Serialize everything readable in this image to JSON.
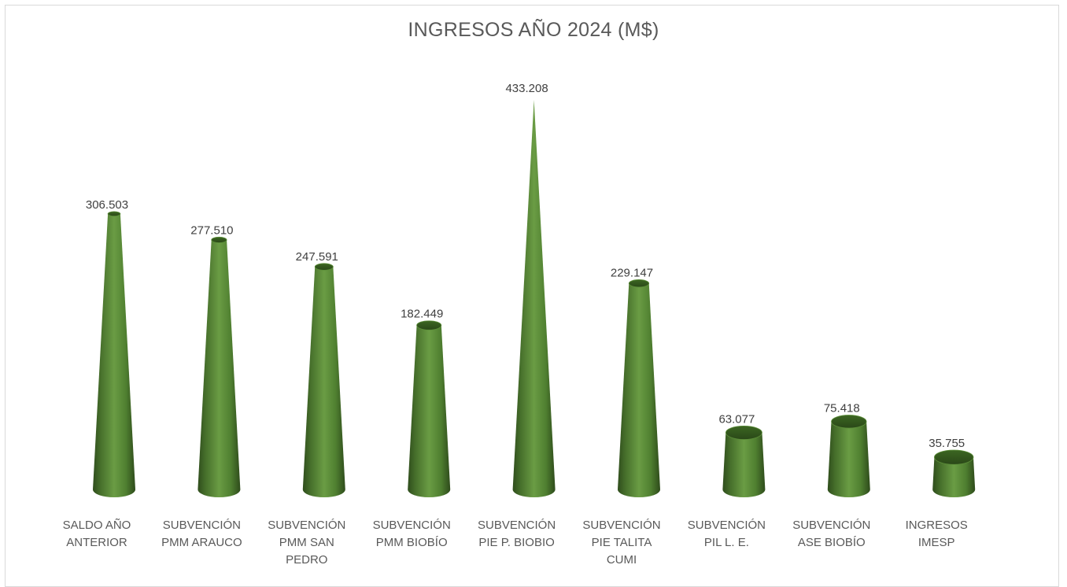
{
  "chart_data": {
    "type": "bar",
    "title": "INGRESOS AÑO 2024 (M$)",
    "categories": [
      [
        "SALDO AÑO",
        "ANTERIOR"
      ],
      [
        "SUBVENCIÓN",
        "PMM ARAUCO"
      ],
      [
        "SUBVENCIÓN",
        "PMM SAN",
        "PEDRO"
      ],
      [
        "SUBVENCIÓN",
        "PMM BIOBÍO"
      ],
      [
        "SUBVENCIÓN",
        "PIE P. BIOBIO"
      ],
      [
        "SUBVENCIÓN",
        "PIE TALITA",
        "CUMI"
      ],
      [
        "SUBVENCIÓN",
        "PIL L. E."
      ],
      [
        "SUBVENCIÓN",
        "ASE BIOBÍO"
      ],
      [
        "INGRESOS",
        "IMESP"
      ]
    ],
    "values": [
      306503,
      277510,
      247591,
      182449,
      433208,
      229147,
      63077,
      75418,
      35755
    ],
    "value_labels": [
      "306.503",
      "277.510",
      "247.591",
      "182.449",
      "433.208",
      "229.147",
      "63.077",
      "75.418",
      "35.755"
    ],
    "bar_shape": "cone",
    "bar_color": "#548235",
    "gridlines": false,
    "legend": "none"
  }
}
